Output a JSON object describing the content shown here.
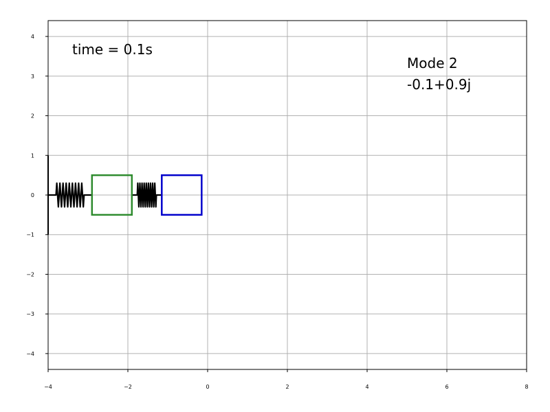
{
  "chart_data": {
    "type": "scatter",
    "title": "",
    "xlabel": "",
    "ylabel": "",
    "xlim": [
      -4,
      8
    ],
    "ylim": [
      -4.4,
      4.4
    ],
    "grid": true,
    "x_ticks": [
      -4,
      -2,
      0,
      2,
      4,
      6,
      8
    ],
    "y_ticks": [
      -4,
      -3,
      -2,
      -1,
      0,
      1,
      2,
      3,
      4
    ],
    "x_tick_labels": [
      "−4",
      "−2",
      "0",
      "2",
      "4",
      "6",
      "8"
    ],
    "y_tick_labels": [
      "−4",
      "−3",
      "−2",
      "−1",
      "0",
      "1",
      "2",
      "3",
      "4"
    ],
    "annotations": {
      "time": "time = 0.1s",
      "mode": "Mode 2",
      "eigenvalue": "-0.1+0.9j"
    },
    "wall": {
      "x": -4,
      "y0": -1,
      "y1": 1,
      "color": "#000000"
    },
    "springs": [
      {
        "x0": -4,
        "x1": -2.9,
        "y": 0,
        "color": "#000000"
      },
      {
        "x0": -1.9,
        "x1": -1.15,
        "y": 0,
        "color": "#000000"
      }
    ],
    "masses": [
      {
        "x0": -2.9,
        "x1": -1.9,
        "y0": -0.5,
        "y1": 0.5,
        "color": "#2e8b2e"
      },
      {
        "x0": -1.15,
        "x1": -0.15,
        "y0": -0.5,
        "y1": 0.5,
        "color": "#0000cc"
      }
    ]
  }
}
